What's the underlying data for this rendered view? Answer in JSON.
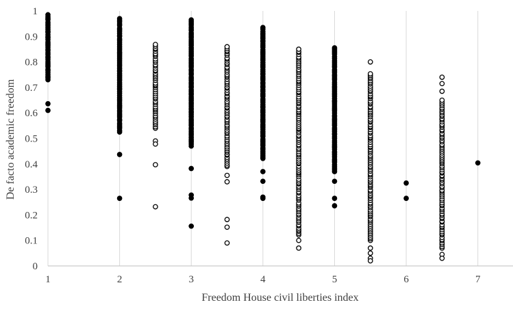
{
  "chart_data": {
    "type": "scatter",
    "title": "",
    "xlabel": "Freedom House civil liberties index",
    "ylabel": "De facto academic freedom",
    "xlim": [
      1,
      7.5
    ],
    "ylim": [
      0,
      1
    ],
    "x_ticks": [
      1,
      2,
      3,
      4,
      5,
      6,
      7
    ],
    "y_ticks": [
      0,
      0.1,
      0.2,
      0.3,
      0.4,
      0.5,
      0.6,
      0.7,
      0.8,
      0.9,
      1
    ],
    "y_tick_labels": [
      "0",
      "0.1",
      "0.2",
      "0.3",
      "0.4",
      "0.5",
      "0.6",
      "0.7",
      "0.8",
      "0.9",
      "1"
    ],
    "grid": "vertical",
    "legend": "none",
    "series": [
      {
        "marker": "filled",
        "color": "#000000",
        "columns": [
          {
            "x": 1,
            "range": [
              0.73,
              0.985
            ],
            "outliers": [
              0.636,
              0.61
            ]
          },
          {
            "x": 2,
            "range": [
              0.525,
              0.97
            ],
            "outliers": [
              0.437,
              0.265
            ]
          },
          {
            "x": 3,
            "range": [
              0.47,
              0.965
            ],
            "outliers": [
              0.382,
              0.278,
              0.266,
              0.156
            ]
          },
          {
            "x": 4,
            "range": [
              0.42,
              0.935
            ],
            "outliers": [
              0.37,
              0.332,
              0.27,
              0.265
            ]
          },
          {
            "x": 5,
            "range": [
              0.37,
              0.857
            ],
            "outliers": [
              0.332,
              0.265,
              0.236
            ]
          },
          {
            "x": 6,
            "range": [],
            "outliers": [
              0.325,
              0.265
            ]
          },
          {
            "x": 7,
            "range": [],
            "outliers": [
              0.404
            ]
          }
        ]
      },
      {
        "marker": "hollow",
        "color": "#000000",
        "columns": [
          {
            "x": 2.5,
            "range": [
              0.54,
              0.87
            ],
            "outliers": [
              0.49,
              0.478,
              0.397,
              0.232
            ]
          },
          {
            "x": 3.5,
            "range": [
              0.39,
              0.86
            ],
            "outliers": [
              0.355,
              0.33,
              0.182,
              0.152,
              0.09
            ]
          },
          {
            "x": 4.5,
            "range": [
              0.12,
              0.85
            ],
            "outliers": [
              0.1,
              0.07
            ]
          },
          {
            "x": 5.5,
            "range": [
              0.1,
              0.755
            ],
            "outliers": [
              0.8,
              0.07,
              0.05,
              0.03,
              0.02
            ]
          },
          {
            "x": 6.5,
            "range": [
              0.07,
              0.65
            ],
            "outliers": [
              0.74,
              0.715,
              0.685,
              0.045,
              0.03
            ]
          }
        ]
      }
    ]
  }
}
